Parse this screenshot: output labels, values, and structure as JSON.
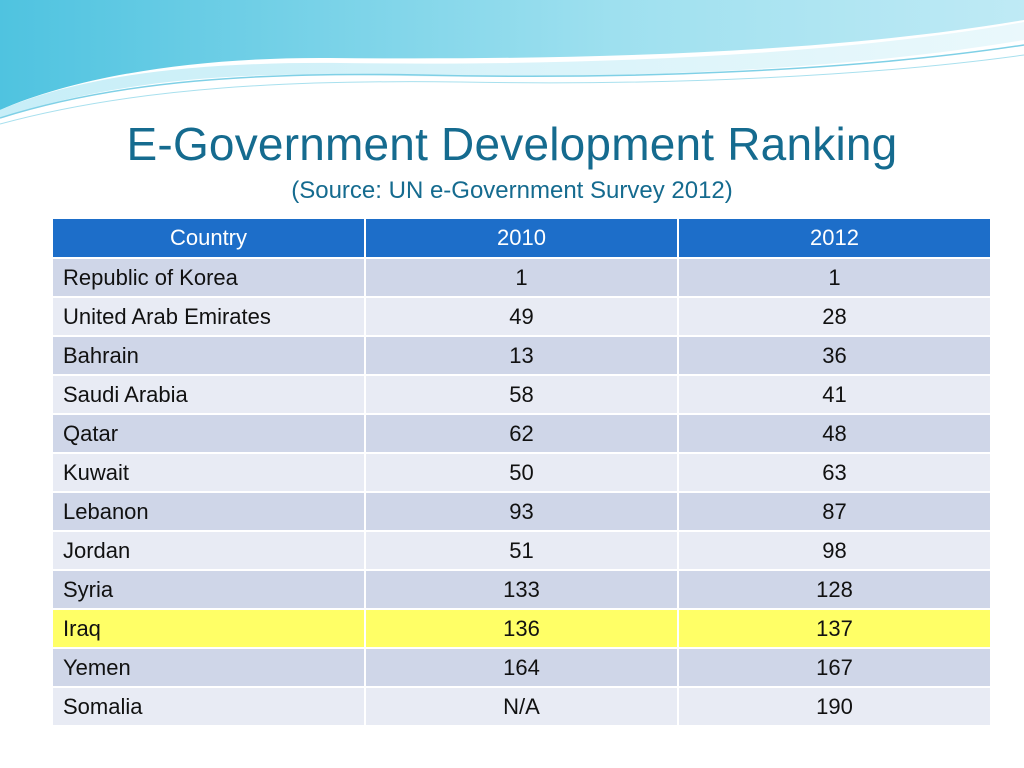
{
  "slide": {
    "title": "E-Government Development Ranking",
    "subtitle": "(Source: UN e-Government Survey 2012)"
  },
  "table": {
    "headers": [
      "Country",
      "2010",
      "2012"
    ],
    "rows": [
      {
        "country": "Republic of Korea",
        "y2010": "1",
        "y2012": "1"
      },
      {
        "country": "United Arab Emirates",
        "y2010": "49",
        "y2012": "28"
      },
      {
        "country": "Bahrain",
        "y2010": "13",
        "y2012": "36"
      },
      {
        "country": "Saudi Arabia",
        "y2010": "58",
        "y2012": "41"
      },
      {
        "country": "Qatar",
        "y2010": "62",
        "y2012": "48"
      },
      {
        "country": "Kuwait",
        "y2010": "50",
        "y2012": "63"
      },
      {
        "country": "Lebanon",
        "y2010": "93",
        "y2012": "87"
      },
      {
        "country": "Jordan",
        "y2010": "51",
        "y2012": "98"
      },
      {
        "country": "Syria",
        "y2010": "133",
        "y2012": "128"
      },
      {
        "country": "Iraq",
        "y2010": "136",
        "y2012": "137"
      },
      {
        "country": "Yemen",
        "y2010": "164",
        "y2012": "167"
      },
      {
        "country": "Somalia",
        "y2010": "N/A",
        "y2012": "190"
      }
    ],
    "highlighted_row": "Iraq"
  },
  "colors": {
    "title": "#156b8f",
    "header_bg": "#1d6ec9",
    "row_dark": "#cfd6e8",
    "row_light": "#e8ebf4",
    "highlight": "#ffff66"
  }
}
